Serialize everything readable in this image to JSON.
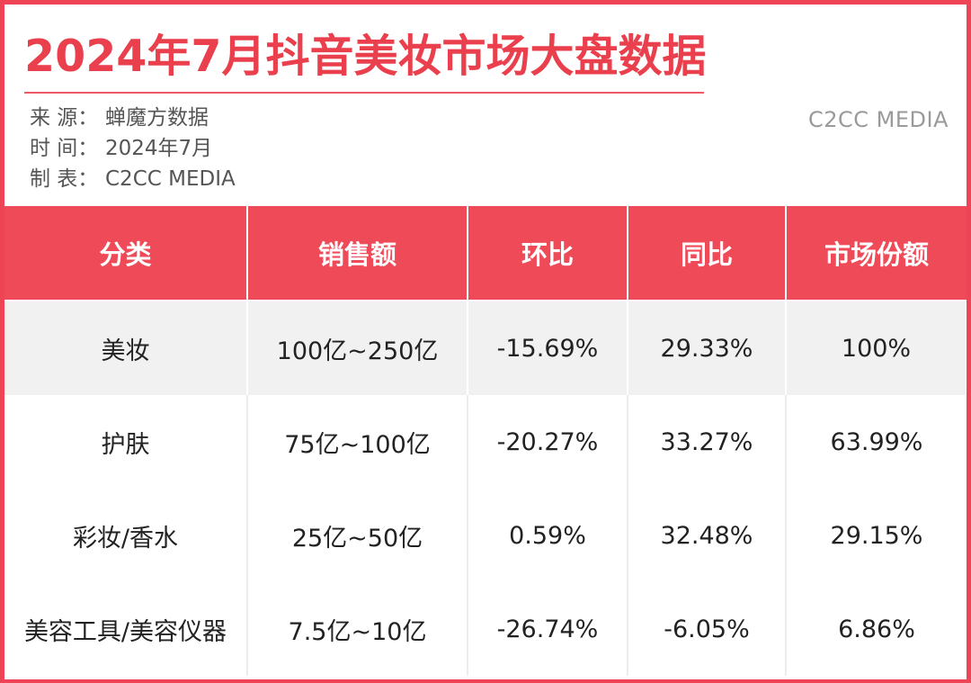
{
  "title": "2024年7月抖音美妆市场大盘数据",
  "meta": {
    "source_label": "来  源：",
    "source_value": "蝉魔方数据",
    "time_label": "时  间：",
    "time_value": "2024年7月",
    "maker_label": "制  表：",
    "maker_value": "C2CC  MEDIA"
  },
  "watermark": "C2CC MEDIA",
  "colors": {
    "accent": "#ea3f4c",
    "header_bg": "#ef4a57",
    "negative": "#3a9a62",
    "row_shade": "#f1f1f1"
  },
  "table": {
    "headers": [
      "分类",
      "销售额",
      "环比",
      "同比",
      "市场份额"
    ],
    "rows": [
      {
        "category": "美妆",
        "sales": "100亿~250亿",
        "mom": "-15.69%",
        "yoy": "29.33%",
        "share": "100%"
      },
      {
        "category": "护肤",
        "sales": "75亿~100亿",
        "mom": "-20.27%",
        "yoy": "33.27%",
        "share": "63.99%"
      },
      {
        "category": "彩妆/香水",
        "sales": "25亿~50亿",
        "mom": "0.59%",
        "yoy": "32.48%",
        "share": "29.15%"
      },
      {
        "category": "美容工具/美容仪器",
        "sales": "7.5亿~10亿",
        "mom": "-26.74%",
        "yoy": "-6.05%",
        "share": "6.86%"
      }
    ]
  }
}
